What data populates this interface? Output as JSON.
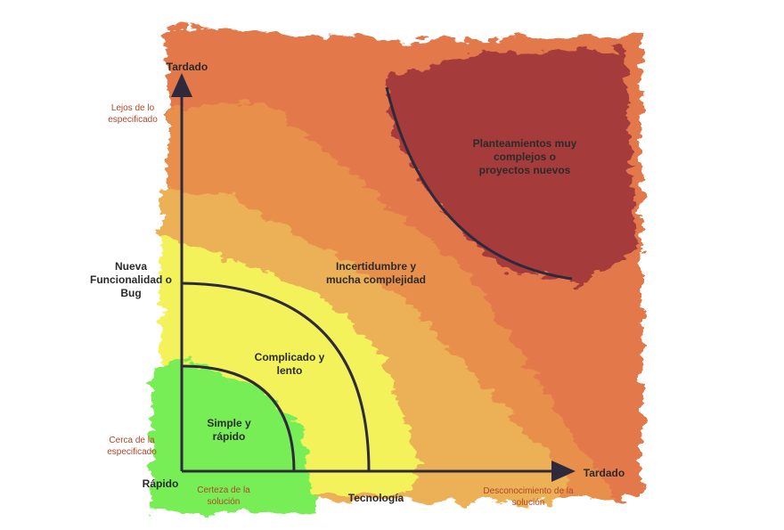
{
  "axes": {
    "y_top": "Tardado",
    "y_top_hint": "Lejos de lo especificado",
    "y_middle": "Nueva Funcionalidad o Bug",
    "y_bottom_hint": "Cerca de la especificado",
    "origin": "Rápido",
    "x_left_hint": "Certeza de la solución",
    "x_middle": "Tecnología",
    "x_right_hint": "Desconocimiento de la solución",
    "x_right": "Tardado"
  },
  "zones": {
    "simple": "Simple y rápido",
    "complicated": "Complicado y lento",
    "uncertainty": "Incertidumbre y mucha complejidad",
    "complex": "Planteamientos muy complejos o proyectos nuevos"
  },
  "colors": {
    "green": "#77ee55",
    "yellow": "#f4f25a",
    "light_orange": "#ecb056",
    "orange": "#e88f4c",
    "dark_orange": "#e3784b",
    "dark_red": "#a63b3b",
    "axis": "#2e2a3c"
  }
}
